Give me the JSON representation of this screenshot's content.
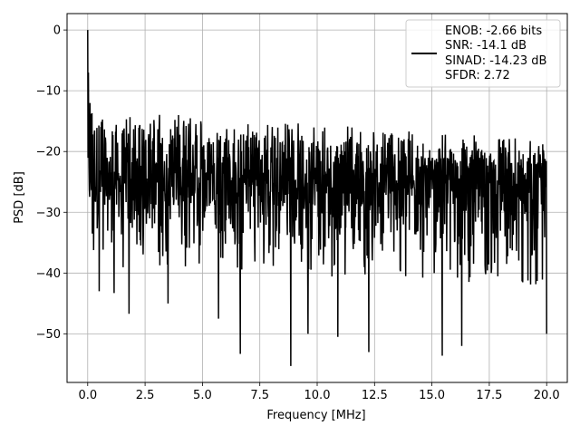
{
  "chart_data": {
    "type": "line",
    "xlabel": "Frequency [MHz]",
    "ylabel": "PSD [dB]",
    "xlim": [
      -0.9,
      20.9
    ],
    "ylim": [
      -58,
      2.7
    ],
    "xticks": [
      0.0,
      2.5,
      5.0,
      7.5,
      10.0,
      12.5,
      15.0,
      17.5,
      20.0
    ],
    "xtick_labels": [
      "0.0",
      "2.5",
      "5.0",
      "7.5",
      "10.0",
      "12.5",
      "15.0",
      "17.5",
      "20.0"
    ],
    "yticks": [
      0,
      -10,
      -20,
      -30,
      -40,
      -50
    ],
    "ytick_labels": [
      "0",
      "−10",
      "−20",
      "−30",
      "−40",
      "−50"
    ],
    "grid": true,
    "legend_position": "top-right",
    "series": [
      {
        "name": "ENOB: -2.66 bits\nSNR: -14.1 dB\nSINAD: -14.23 dB\nSFDR: 2.72",
        "color": "#000000",
        "x_range": [
          0,
          20
        ],
        "description": "noisy power spectral density trace",
        "key_points": [
          {
            "x": 0.0,
            "y": 0.0
          },
          {
            "x": 0.03,
            "y": -7
          },
          {
            "x": 0.1,
            "y": -12
          },
          {
            "x": 0.2,
            "y": -33.5
          },
          {
            "x": 0.5,
            "y": -43
          },
          {
            "x": 1.15,
            "y": -43.3
          },
          {
            "x": 1.8,
            "y": -46.7
          },
          {
            "x": 3.5,
            "y": -45
          },
          {
            "x": 5.7,
            "y": -47.5
          },
          {
            "x": 6.65,
            "y": -53.3
          },
          {
            "x": 8.85,
            "y": -55.3
          },
          {
            "x": 9.6,
            "y": -50
          },
          {
            "x": 10.9,
            "y": -50.5
          },
          {
            "x": 12.25,
            "y": -53
          },
          {
            "x": 15.45,
            "y": -53.6
          },
          {
            "x": 16.3,
            "y": -52
          },
          {
            "x": 20.0,
            "y": -50.0
          }
        ],
        "upper_envelope_start": -15,
        "upper_envelope_end": -20,
        "lower_envelope_start": -33,
        "lower_envelope_end": -36,
        "mean_level": -25
      }
    ]
  },
  "legend": {
    "line1": "ENOB: -2.66 bits",
    "line2": "SNR: -14.1 dB",
    "line3": "SINAD: -14.23 dB",
    "line4": "SFDR: 2.72"
  }
}
